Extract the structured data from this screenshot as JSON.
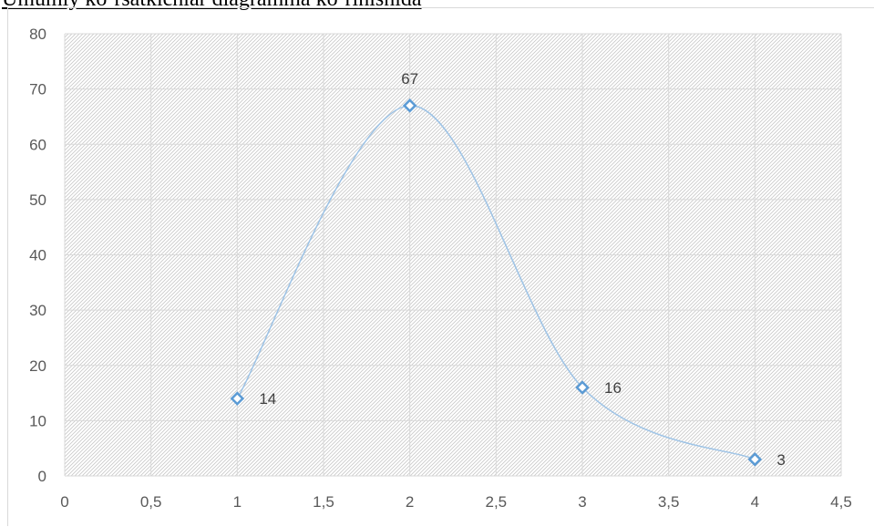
{
  "title": "Umumiy ko`rsatkichlar diagramma ko`rinishida",
  "chart_data": {
    "type": "scatter",
    "title": "",
    "xlabel": "",
    "ylabel": "",
    "xlim": [
      0,
      4.5
    ],
    "ylim": [
      0,
      80
    ],
    "x_ticks": [
      "0",
      "0,5",
      "1",
      "1,5",
      "2",
      "2,5",
      "3",
      "3,5",
      "4",
      "4,5"
    ],
    "y_ticks": [
      "0",
      "10",
      "20",
      "30",
      "40",
      "50",
      "60",
      "70",
      "80"
    ],
    "grid": true,
    "smooth_line": true,
    "marker": "diamond",
    "series": [
      {
        "x": [
          1,
          2,
          3,
          4
        ],
        "y": [
          14,
          67,
          16,
          3
        ],
        "labels": [
          "14",
          "67",
          "16",
          "3"
        ]
      }
    ],
    "colors": {
      "line": "#9dc3e6",
      "marker": "#5b9bd5",
      "grid": "#d9d9d9",
      "hatch": "#bfbfbf"
    }
  }
}
